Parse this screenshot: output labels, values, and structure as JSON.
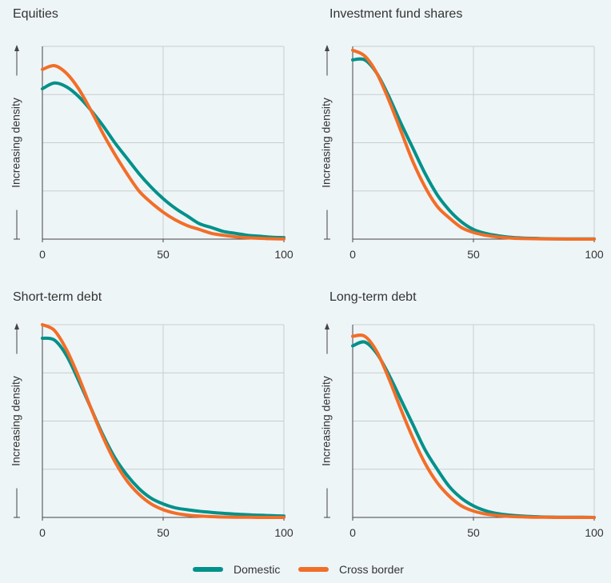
{
  "chart_data": [
    {
      "type": "line",
      "title": "Equities",
      "ylabel": "Increasing density",
      "xlim": [
        0,
        100
      ],
      "xticks": [
        0,
        50,
        100
      ],
      "yticks": [
        "",
        "",
        "",
        ""
      ],
      "ylim": [
        0,
        1
      ],
      "grid": true,
      "x": [
        0,
        5,
        10,
        15,
        20,
        25,
        30,
        35,
        40,
        45,
        50,
        55,
        60,
        65,
        70,
        75,
        80,
        85,
        90,
        95,
        100
      ],
      "series": [
        {
          "name": "Domestic",
          "values": [
            0.78,
            0.81,
            0.79,
            0.74,
            0.67,
            0.59,
            0.5,
            0.42,
            0.34,
            0.27,
            0.21,
            0.16,
            0.12,
            0.08,
            0.06,
            0.04,
            0.03,
            0.02,
            0.015,
            0.01,
            0.008
          ]
        },
        {
          "name": "Cross border",
          "values": [
            0.88,
            0.9,
            0.86,
            0.78,
            0.67,
            0.55,
            0.44,
            0.34,
            0.25,
            0.19,
            0.14,
            0.1,
            0.07,
            0.05,
            0.03,
            0.02,
            0.012,
            0.007,
            0.004,
            0.002,
            0.001
          ]
        }
      ]
    },
    {
      "type": "line",
      "title": "Investment fund shares",
      "ylabel": "Increasing density",
      "xlim": [
        0,
        100
      ],
      "xticks": [
        0,
        50,
        100
      ],
      "yticks": [
        "",
        "",
        "",
        ""
      ],
      "ylim": [
        0,
        1
      ],
      "grid": true,
      "x": [
        0,
        5,
        10,
        15,
        20,
        25,
        30,
        35,
        40,
        45,
        50,
        55,
        60,
        65,
        70,
        75,
        80,
        85,
        90,
        95,
        100
      ],
      "series": [
        {
          "name": "Domestic",
          "values": [
            0.93,
            0.93,
            0.86,
            0.74,
            0.6,
            0.47,
            0.34,
            0.23,
            0.15,
            0.09,
            0.05,
            0.03,
            0.018,
            0.01,
            0.006,
            0.004,
            0.002,
            0.001,
            0.001,
            0.001,
            0.001
          ]
        },
        {
          "name": "Cross border",
          "values": [
            0.98,
            0.95,
            0.86,
            0.72,
            0.56,
            0.4,
            0.27,
            0.17,
            0.11,
            0.06,
            0.035,
            0.02,
            0.011,
            0.006,
            0.003,
            0.002,
            0.001,
            0.001,
            0.0,
            0.0,
            0.0
          ]
        }
      ]
    },
    {
      "type": "line",
      "title": "Short-term debt",
      "ylabel": "Increasing density",
      "xlim": [
        0,
        100
      ],
      "xticks": [
        0,
        50,
        100
      ],
      "yticks": [
        "",
        "",
        "",
        ""
      ],
      "ylim": [
        0,
        1
      ],
      "grid": true,
      "x": [
        0,
        5,
        10,
        15,
        20,
        25,
        30,
        35,
        40,
        45,
        50,
        55,
        60,
        65,
        70,
        75,
        80,
        85,
        90,
        95,
        100
      ],
      "series": [
        {
          "name": "Domestic",
          "values": [
            0.93,
            0.92,
            0.84,
            0.71,
            0.57,
            0.43,
            0.31,
            0.22,
            0.15,
            0.1,
            0.07,
            0.05,
            0.04,
            0.032,
            0.026,
            0.021,
            0.017,
            0.014,
            0.011,
            0.009,
            0.007
          ]
        },
        {
          "name": "Cross border",
          "values": [
            1.0,
            0.97,
            0.87,
            0.73,
            0.57,
            0.42,
            0.29,
            0.19,
            0.12,
            0.07,
            0.04,
            0.022,
            0.012,
            0.007,
            0.004,
            0.002,
            0.001,
            0.001,
            0.0,
            0.0,
            0.0
          ]
        }
      ]
    },
    {
      "type": "line",
      "title": "Long-term debt",
      "ylabel": "Increasing density",
      "xlim": [
        0,
        100
      ],
      "xticks": [
        0,
        50,
        100
      ],
      "yticks": [
        "",
        "",
        "",
        ""
      ],
      "ylim": [
        0,
        1
      ],
      "grid": true,
      "x": [
        0,
        5,
        10,
        15,
        20,
        25,
        30,
        35,
        40,
        45,
        50,
        55,
        60,
        65,
        70,
        75,
        80,
        85,
        90,
        95,
        100
      ],
      "series": [
        {
          "name": "Domestic",
          "values": [
            0.89,
            0.91,
            0.85,
            0.74,
            0.61,
            0.48,
            0.35,
            0.25,
            0.16,
            0.1,
            0.06,
            0.035,
            0.02,
            0.012,
            0.007,
            0.004,
            0.002,
            0.001,
            0.001,
            0.001,
            0.0
          ]
        },
        {
          "name": "Cross border",
          "values": [
            0.94,
            0.94,
            0.86,
            0.72,
            0.56,
            0.41,
            0.28,
            0.18,
            0.11,
            0.06,
            0.033,
            0.018,
            0.01,
            0.005,
            0.003,
            0.001,
            0.001,
            0.0,
            0.0,
            0.0,
            0.0
          ]
        }
      ]
    }
  ],
  "legend": {
    "placement": "bottom-center",
    "items": [
      {
        "label": "Domestic",
        "color": "#00918a"
      },
      {
        "label": "Cross border",
        "color": "#f26e28"
      }
    ]
  },
  "colors": {
    "domestic": "#00918a",
    "cross_border": "#f26e28",
    "background": "#eef5f7",
    "grid": "#c8cdd0",
    "axis": "#444444",
    "text": "#333333"
  }
}
